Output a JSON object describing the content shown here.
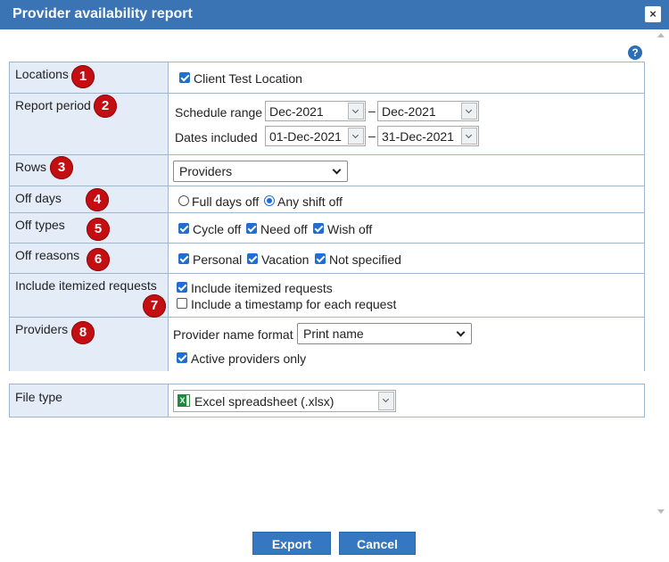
{
  "dialog": {
    "title": "Provider availability report",
    "close_glyph": "×",
    "help_glyph": "?",
    "accent_color": "#3a74b5",
    "badge_color": "#c40f12"
  },
  "rows": {
    "locations": {
      "label": "Locations",
      "badge": "1",
      "checkbox_label": "Client Test Location",
      "checked": true
    },
    "report_period": {
      "label": "Report period",
      "badge": "2",
      "schedule_range_label": "Schedule range",
      "schedule_from": "Dec-2021",
      "schedule_to": "Dec-2021",
      "dates_included_label": "Dates included",
      "dates_from": "01-Dec-2021",
      "dates_to": "31-Dec-2021",
      "separator": "–"
    },
    "rows_setting": {
      "label": "Rows",
      "badge": "3",
      "selected": "Providers"
    },
    "off_days": {
      "label": "Off days",
      "badge": "4",
      "option_full": "Full days off",
      "option_any": "Any shift off",
      "selected": "Any shift off"
    },
    "off_types": {
      "label": "Off types",
      "badge": "5",
      "items": [
        "Cycle off",
        "Need off",
        "Wish off"
      ]
    },
    "off_reasons": {
      "label": "Off reasons",
      "badge": "6",
      "items": [
        "Personal",
        "Vacation",
        "Not specified"
      ]
    },
    "itemized": {
      "label": "Include itemized requests",
      "badge": "7",
      "option_itemized": "Include itemized requests",
      "option_timestamp": "Include a timestamp for each request"
    },
    "providers": {
      "label": "Providers",
      "badge": "8",
      "name_format_label": "Provider name format",
      "name_format_selected": "Print name",
      "active_only_label": "Active providers only"
    }
  },
  "file_type": {
    "label": "File type",
    "selected": "Excel spreadsheet (.xlsx)",
    "icon": "excel-icon"
  },
  "actions": {
    "export_label": "Export",
    "cancel_label": "Cancel"
  }
}
